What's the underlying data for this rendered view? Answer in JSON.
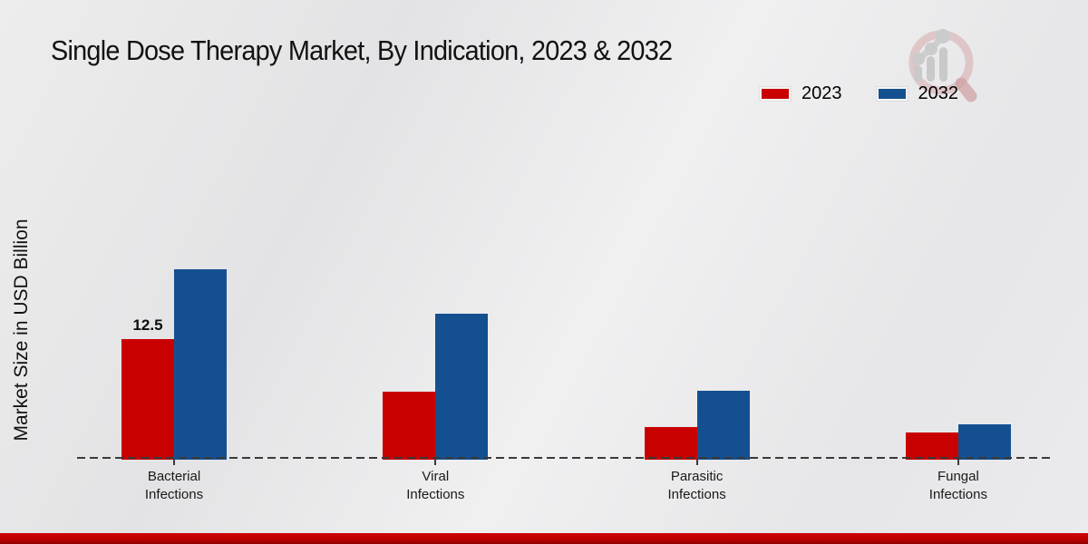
{
  "title": "Single Dose Therapy Market, By Indication, 2023 & 2032",
  "y_axis_label": "Market Size in USD Billion",
  "legend": {
    "items": [
      "2023",
      "2032"
    ]
  },
  "branding": {
    "logo_icon": "magnifier-growth-chart-watermark",
    "accent_color": "#c00000"
  },
  "chart_data": {
    "type": "bar",
    "title": "Single Dose Therapy Market, By Indication, 2023 & 2032",
    "xlabel": "",
    "ylabel": "Market Size in USD Billion",
    "categories": [
      "Bacterial Infections",
      "Viral Infections",
      "Parasitic Infections",
      "Fungal Infections"
    ],
    "series": [
      {
        "name": "2023",
        "color": "#c80000",
        "values": [
          12.5,
          7.1,
          3.4,
          2.8
        ]
      },
      {
        "name": "2032",
        "color": "#14508f",
        "values": [
          19.8,
          15.2,
          7.2,
          3.7
        ]
      }
    ],
    "data_labels": [
      {
        "series": "2023",
        "category": "Bacterial Infections",
        "text": "12.5"
      }
    ],
    "ylim": [
      0,
      22
    ],
    "grid": false,
    "axis_style": "dashed-baseline-only",
    "legend_position": "top-right"
  }
}
